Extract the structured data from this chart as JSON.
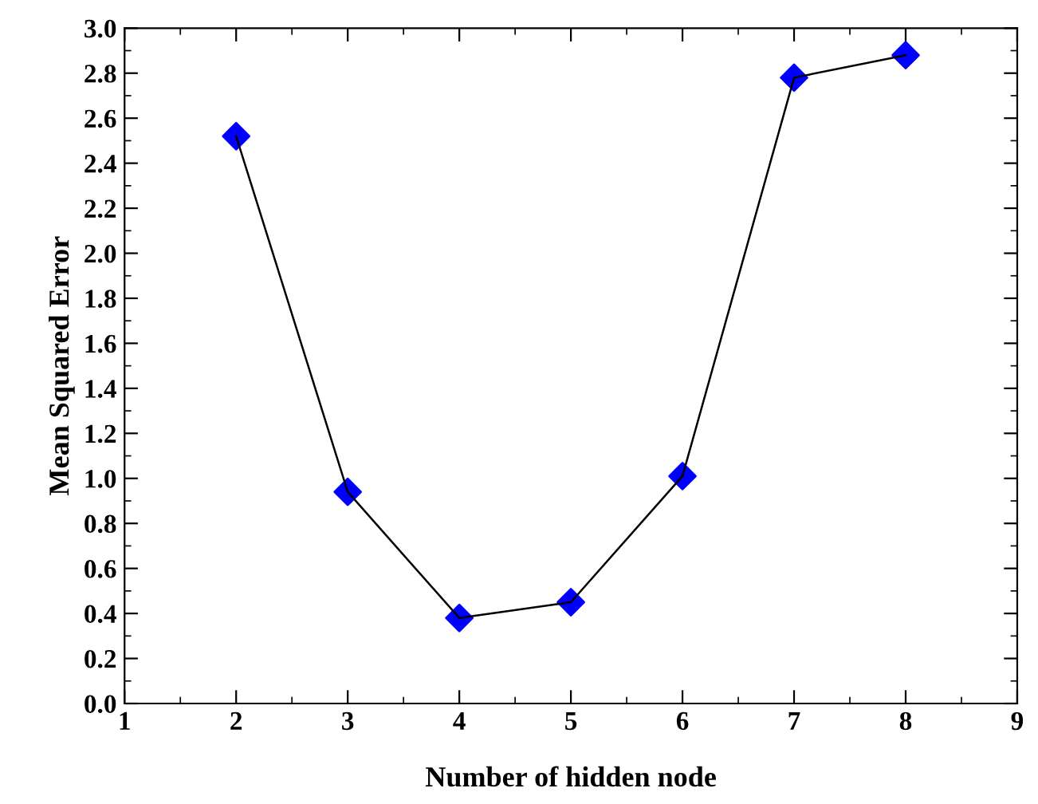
{
  "chart_data": {
    "type": "line",
    "xlabel": "Number of hidden node",
    "ylabel": "Mean Squared Error",
    "x": [
      2,
      3,
      4,
      5,
      6,
      7,
      8
    ],
    "series": [
      {
        "color": "#000000",
        "marker": "none",
        "values": [
          2.52,
          0.94,
          0.38,
          0.45,
          1.01,
          2.78,
          2.88
        ]
      },
      {
        "type": "scatter",
        "color": "#0000ff",
        "marker": "diamond",
        "values": [
          2.52,
          0.94,
          0.38,
          0.45,
          1.01,
          2.78,
          2.88
        ]
      }
    ],
    "xlim": [
      1,
      9
    ],
    "xticks": [
      1,
      2,
      3,
      4,
      5,
      6,
      7,
      8,
      9
    ],
    "ylim": [
      0,
      3.0
    ],
    "yticks": [
      {
        "value": 0,
        "label": "0.0"
      },
      0.2,
      0.4,
      0.6,
      0.8,
      {
        "value": 1,
        "label": "1.0"
      },
      1.2,
      1.4,
      1.6,
      1.8,
      {
        "value": 2,
        "label": "2.0"
      },
      2.2,
      2.4,
      2.6,
      2.8,
      {
        "value": 3,
        "label": "3.0"
      }
    ],
    "line_style": "solid",
    "grid": false,
    "legend": false
  }
}
